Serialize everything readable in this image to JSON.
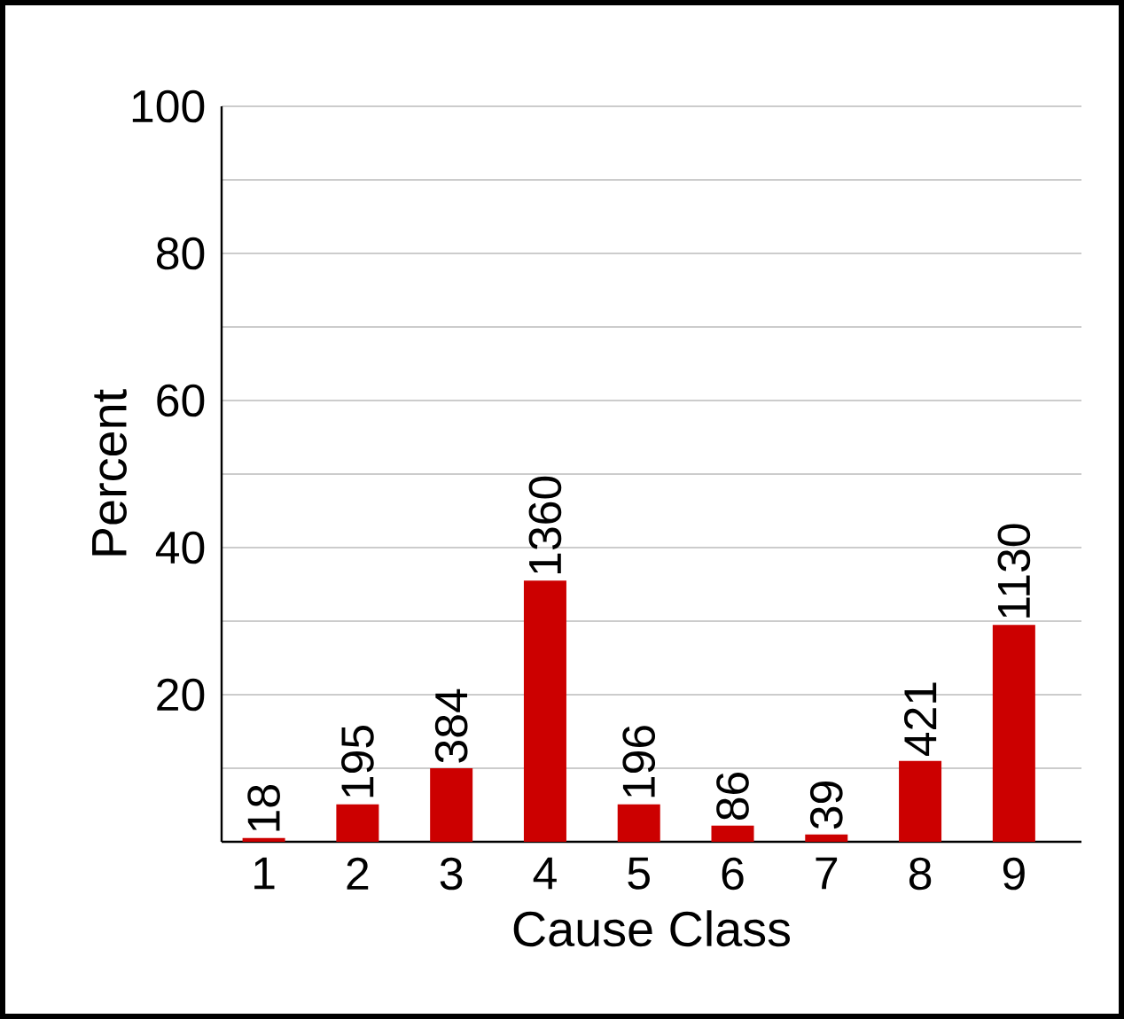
{
  "chart_data": {
    "type": "bar",
    "xlabel": "Cause Class",
    "ylabel": "Percent",
    "categories": [
      "1",
      "2",
      "3",
      "4",
      "5",
      "6",
      "7",
      "8",
      "9"
    ],
    "values": [
      0.5,
      5.1,
      10.0,
      35.5,
      5.1,
      2.2,
      1.0,
      11.0,
      29.5
    ],
    "annotations": [
      {
        "text": "18",
        "x": "1",
        "y": 0.5
      },
      {
        "text": "195",
        "x": "2",
        "y": 5.1
      },
      {
        "text": "384",
        "x": "3",
        "y": 10.0
      },
      {
        "text": "1360",
        "x": "4",
        "y": 35.5
      },
      {
        "text": "196",
        "x": "5",
        "y": 5.1
      },
      {
        "text": "86",
        "x": "6",
        "y": 2.2
      },
      {
        "text": "39",
        "x": "7",
        "y": 1.0
      },
      {
        "text": "421",
        "x": "8",
        "y": 11.0
      },
      {
        "text": "1130",
        "x": "9",
        "y": 29.5
      }
    ],
    "color": "#cc0000",
    "ylim": [
      0,
      100
    ],
    "yticks": [
      {
        "value": 10,
        "label": null
      },
      20,
      {
        "value": 30,
        "label": null
      },
      40,
      {
        "value": 50,
        "label": null
      },
      60,
      {
        "value": 70,
        "label": null
      },
      80,
      {
        "value": 90,
        "label": null
      },
      100
    ],
    "grid": "y"
  }
}
